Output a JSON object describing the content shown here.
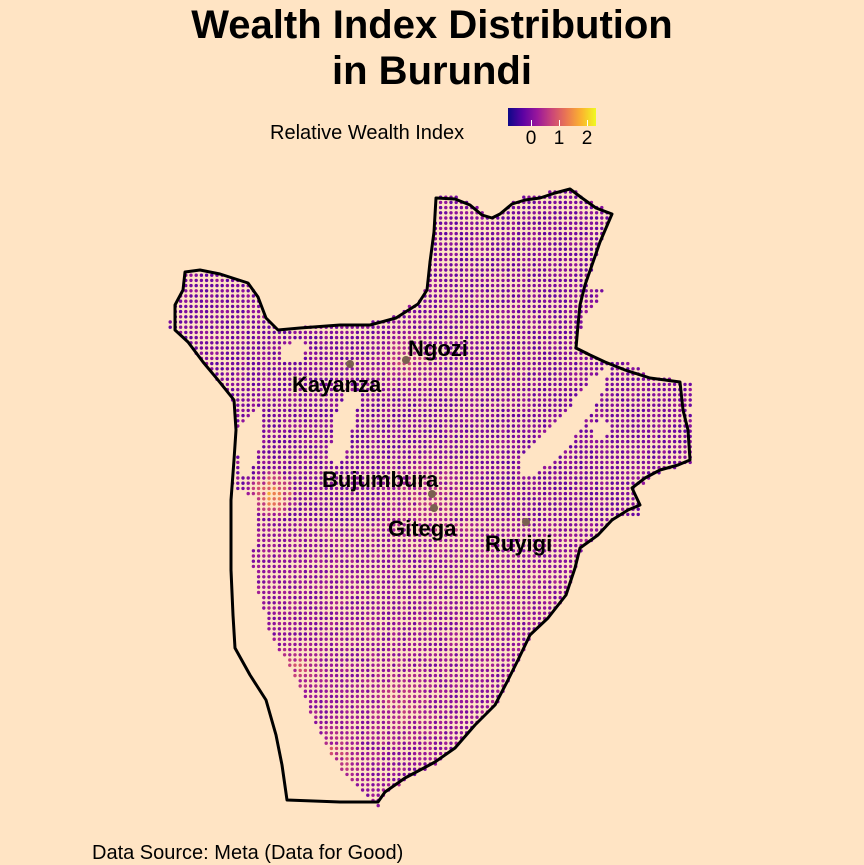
{
  "title_line1": "Wealth Index Distribution",
  "title_line2": "in Burundi",
  "legend": {
    "title": "Relative Wealth Index",
    "ticks": [
      "0",
      "1",
      "2"
    ],
    "colors": [
      "#0D0887",
      "#5B02A3",
      "#9A179B",
      "#CB4678",
      "#EB7852",
      "#FBB32F",
      "#F0F921"
    ]
  },
  "cities": [
    {
      "name": "Ngozi"
    },
    {
      "name": "Kayanza"
    },
    {
      "name": "Bujumbura"
    },
    {
      "name": "Gitega"
    },
    {
      "name": "Ruyigi"
    }
  ],
  "caption": "Data Source: Meta (Data for Good)",
  "colors": {
    "background": "#FFE4C4",
    "border": "#000000",
    "city_point": "#7A6050"
  }
}
